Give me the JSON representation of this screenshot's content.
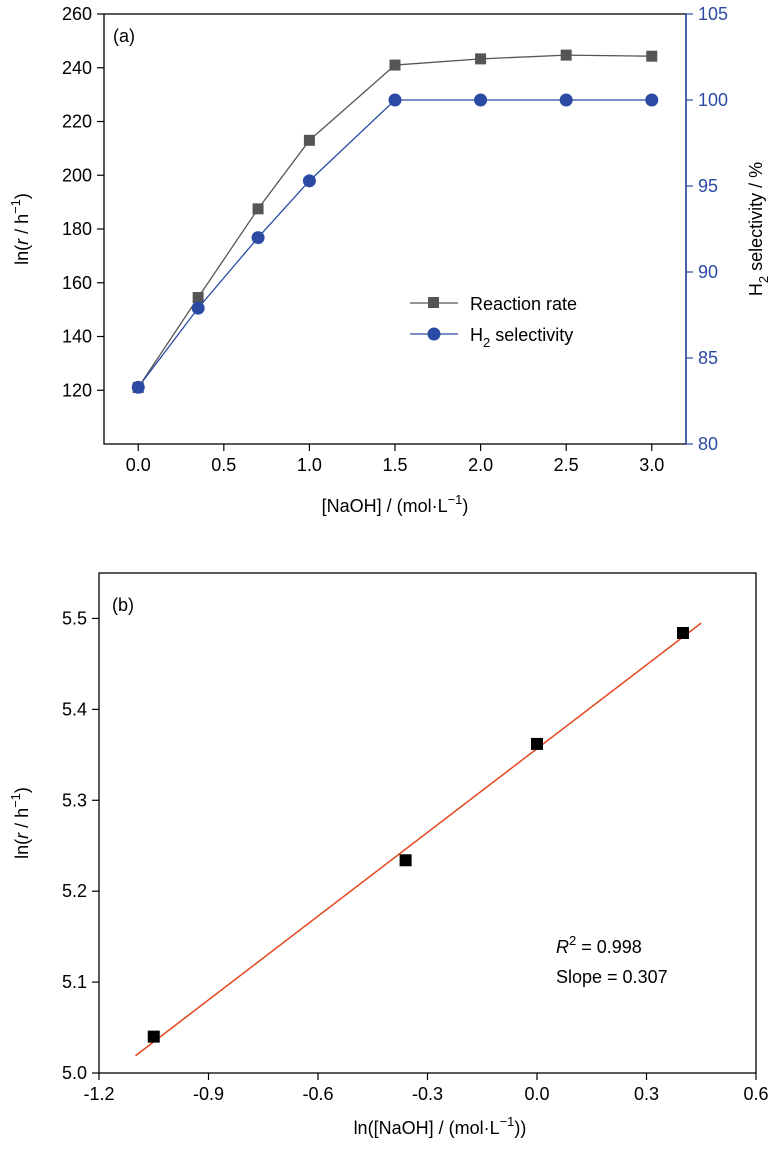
{
  "chart_data": [
    {
      "panel_label": "(a)",
      "type": "line",
      "xlabel": {
        "prefix": "[NaOH] / (mol·L",
        "sup": "−1",
        "suffix": ")"
      },
      "ylabel_left": {
        "prefix": "ln(",
        "italic": "r",
        "mid": " / h",
        "sup": "−1",
        "suffix": ")"
      },
      "ylabel_right": {
        "prefix": "H",
        "sub": "2",
        "suffix": " selectivity / %"
      },
      "xlim": [
        -0.2,
        3.2
      ],
      "ylim_left": [
        100,
        260
      ],
      "ylim_right": [
        80,
        105
      ],
      "x_ticks": [
        "0.0",
        "0.5",
        "1.0",
        "1.5",
        "2.0",
        "2.5",
        "3.0"
      ],
      "y_ticks_left": [
        "120",
        "140",
        "160",
        "180",
        "200",
        "220",
        "240",
        "260"
      ],
      "y_ticks_right": [
        "80",
        "85",
        "90",
        "95",
        "100",
        "105"
      ],
      "legend_position": "center-right",
      "series": [
        {
          "name": "Reaction rate",
          "axis": "left",
          "marker": "square",
          "color": "#555555",
          "line_color": "#555555",
          "x": [
            0,
            0.35,
            0.7,
            1.0,
            1.5,
            2.0,
            2.5,
            3.0
          ],
          "y": [
            121,
            154.5,
            187.5,
            213,
            241,
            243.3,
            244.7,
            244.3
          ]
        },
        {
          "name": "H2 selectivity",
          "legend": {
            "prefix": "H",
            "sub": "2",
            "suffix": " selectivity"
          },
          "axis": "right",
          "marker": "circle",
          "color": "#2b4aa3",
          "line_color": "#2b4aa3",
          "x": [
            0,
            0.35,
            0.7,
            1.0,
            1.5,
            2.0,
            2.5,
            3.0
          ],
          "y": [
            83.3,
            87.9,
            92.0,
            95.3,
            100,
            100,
            100,
            100
          ]
        }
      ]
    },
    {
      "panel_label": "(b)",
      "type": "scatter",
      "xlabel": {
        "prefix": "ln([NaOH] / (mol·L",
        "sup": "−1",
        "suffix": "))"
      },
      "ylabel": {
        "prefix": "ln(",
        "italic": "r",
        "mid": " / h",
        "sup": "−1",
        "suffix": ")"
      },
      "xlim": [
        -1.2,
        0.6
      ],
      "ylim": [
        5.0,
        5.55
      ],
      "x_ticks": [
        "-1.2",
        "-0.9",
        "-0.6",
        "-0.3",
        "0.0",
        "0.3",
        "0.6"
      ],
      "y_ticks": [
        "5.0",
        "5.1",
        "5.2",
        "5.3",
        "5.4",
        "5.5"
      ],
      "points": {
        "marker": "square",
        "color": "#000000",
        "x": [
          -1.05,
          -0.36,
          0.0,
          0.4
        ],
        "y": [
          5.04,
          5.234,
          5.362,
          5.484
        ]
      },
      "fit": {
        "color": "#e2461c",
        "x": [
          -1.1,
          0.45
        ],
        "y": [
          5.019,
          5.495
        ]
      },
      "annotation": {
        "r2": {
          "italic": "R",
          "sup": "2",
          "suffix": " = 0.998"
        },
        "slope": "Slope = 0.307"
      }
    }
  ]
}
